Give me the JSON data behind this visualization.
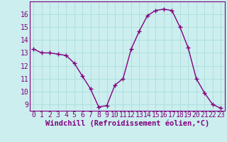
{
  "x": [
    0,
    1,
    2,
    3,
    4,
    5,
    6,
    7,
    8,
    9,
    10,
    11,
    12,
    13,
    14,
    15,
    16,
    17,
    18,
    19,
    20,
    21,
    22,
    23
  ],
  "y": [
    13.3,
    13.0,
    13.0,
    12.9,
    12.8,
    12.2,
    11.2,
    10.2,
    8.8,
    8.9,
    10.5,
    11.0,
    13.3,
    14.7,
    15.9,
    16.3,
    16.4,
    16.3,
    15.0,
    13.4,
    11.0,
    9.9,
    9.0,
    8.7
  ],
  "line_color": "#800080",
  "marker": "+",
  "marker_size": 4,
  "marker_lw": 1.0,
  "bg_color": "#cceeee",
  "grid_color": "#aadddd",
  "xlabel": "Windchill (Refroidissement éolien,°C)",
  "xlabel_fontsize": 7.5,
  "tick_fontsize": 7,
  "ylim": [
    8.5,
    17.0
  ],
  "xlim": [
    -0.5,
    23.5
  ],
  "yticks": [
    9,
    10,
    11,
    12,
    13,
    14,
    15,
    16
  ],
  "xticks": [
    0,
    1,
    2,
    3,
    4,
    5,
    6,
    7,
    8,
    9,
    10,
    11,
    12,
    13,
    14,
    15,
    16,
    17,
    18,
    19,
    20,
    21,
    22,
    23
  ],
  "axis_color": "#800080",
  "linewidth": 1.0
}
